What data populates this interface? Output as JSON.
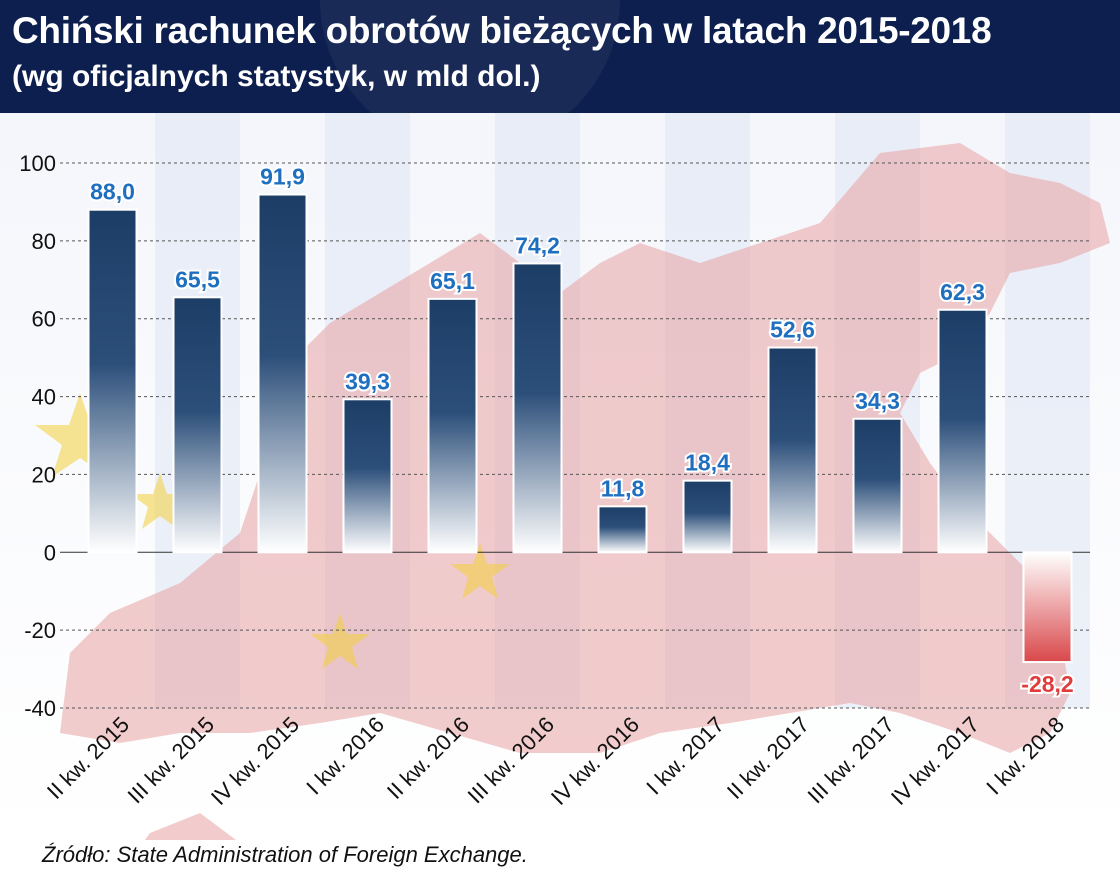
{
  "header": {
    "title": "Chiński rachunek obrotów bieżących w latach 2015-2018",
    "subtitle": "(wg oficjalnych statystyk, w mld dol.)"
  },
  "source": "Źródło: State Administration of Foreign Exchange.",
  "colors": {
    "header_bg": "#0d1f4f",
    "positive_bar": "#1c3d66",
    "negative_bar": "#d9474a",
    "positive_label": "#1f6fc0",
    "negative_label": "#e03c3c",
    "map_red": "#e8a3a3",
    "flag_star": "#f3d03a"
  },
  "chart_data": {
    "type": "bar",
    "categories": [
      "II kw. 2015",
      "III kw. 2015",
      "IV kw. 2015",
      "I kw. 2016",
      "II kw. 2016",
      "III kw. 2016",
      "IV kw. 2016",
      "I kw. 2017",
      "II kw. 2017",
      "III kw. 2017",
      "IV kw. 2017",
      "I kw. 2018"
    ],
    "values": [
      88.0,
      65.5,
      91.9,
      39.3,
      65.1,
      74.2,
      11.8,
      18.4,
      52.6,
      34.3,
      62.3,
      -28.2
    ],
    "value_labels": [
      "88,0",
      "65,5",
      "91,9",
      "39,3",
      "65,1",
      "74,2",
      "11,8",
      "18,4",
      "52,6",
      "34,3",
      "62,3",
      "-28,2"
    ],
    "yticks": [
      "100",
      "80",
      "60",
      "40",
      "20",
      "0",
      "-20",
      "-40"
    ],
    "ylim": [
      -40,
      100
    ],
    "xlabel": "",
    "ylabel": "",
    "grid": true
  }
}
